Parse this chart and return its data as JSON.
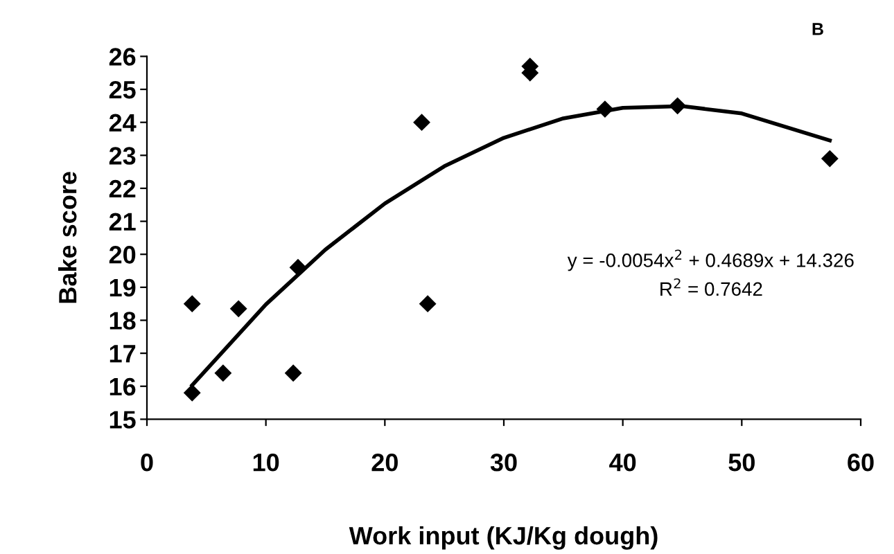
{
  "chart_data": {
    "type": "scatter",
    "xlabel": "Work input (KJ/Kg dough)",
    "ylabel": "Bake score",
    "annotations": [
      "B",
      "y = -0.0054x$^{2}$ + 0.4689x + 14.326",
      "R$^{2}$ = 0.7642"
    ],
    "xlim": [
      0,
      60
    ],
    "xticks": [
      0,
      10,
      20,
      30,
      40,
      50,
      60
    ],
    "ylim": [
      15,
      26
    ],
    "yticks": [
      15,
      16,
      17,
      18,
      19,
      20,
      21,
      22,
      23,
      24,
      25,
      26
    ],
    "grid": false,
    "legend": false,
    "series": [
      {
        "color": "#000000",
        "marker": "diamond",
        "x": [
          3.8,
          3.8,
          6.4,
          7.7,
          12.3,
          12.7,
          23.1,
          23.6,
          32.2,
          32.2,
          38.5,
          44.6,
          57.4
        ],
        "values": [
          15.8,
          18.5,
          16.4,
          18.35,
          16.4,
          19.6,
          24.0,
          18.5,
          25.7,
          25.5,
          24.4,
          24.5,
          22.9
        ]
      },
      {
        "type": "line",
        "color": "#000000",
        "marker": "none",
        "line_style": "solid",
        "x": [
          3.8,
          10,
          15,
          20,
          25,
          30,
          35,
          40,
          45,
          50,
          57.4
        ],
        "values": [
          16.03,
          18.48,
          20.14,
          21.54,
          22.67,
          23.53,
          24.12,
          24.44,
          24.49,
          24.27,
          23.45
        ]
      }
    ]
  }
}
